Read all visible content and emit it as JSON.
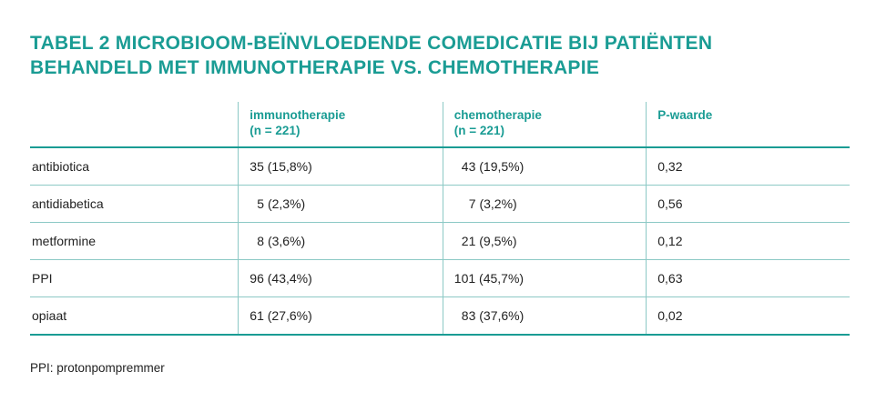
{
  "title": {
    "line1": "TABEL 2  MICROBIOOM-BEÏNVLOEDENDE COMEDICATIE BIJ PATIËNTEN",
    "line2": "BEHANDELD MET IMMUNOTHERAPIE VS. CHEMOTHERAPIE"
  },
  "table": {
    "headers": [
      {
        "line1": "",
        "line2": ""
      },
      {
        "line1": "immunotherapie",
        "line2": "(n = 221)"
      },
      {
        "line1": "chemotherapie",
        "line2": "(n = 221)"
      },
      {
        "line1": "P-waarde",
        "line2": ""
      }
    ],
    "rows": [
      {
        "drug": "antibiotica",
        "immuno": "35 (15,8%)",
        "chemo": "43 (19,5%)",
        "p": "0,32"
      },
      {
        "drug": "antidiabetica",
        "immuno": "5 (2,3%)",
        "chemo": "7 (3,2%)",
        "p": "0,56"
      },
      {
        "drug": "metformine",
        "immuno": "8 (3,6%)",
        "chemo": "21 (9,5%)",
        "p": "0,12"
      },
      {
        "drug": "PPI",
        "immuno": "96 (43,4%)",
        "chemo": "101 (45,7%)",
        "p": "0,63"
      },
      {
        "drug": "opiaat",
        "immuno": "61 (27,6%)",
        "chemo": "83 (37,6%)",
        "p": "0,02"
      }
    ]
  },
  "footnote": "PPI: protonpompremmer"
}
